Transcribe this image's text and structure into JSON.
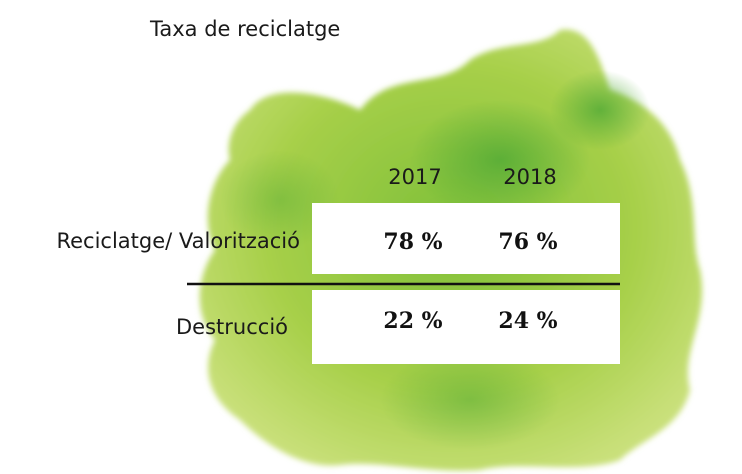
{
  "title": "Taxa de reciclatge",
  "table": {
    "columns": [
      "2017",
      "2018"
    ],
    "rows": [
      {
        "label": "Reciclatge/ Valorització",
        "cells": [
          "78 %",
          "76 %"
        ]
      },
      {
        "label": "Destrucció",
        "cells": [
          "22 %",
          "24 %"
        ]
      }
    ]
  }
}
